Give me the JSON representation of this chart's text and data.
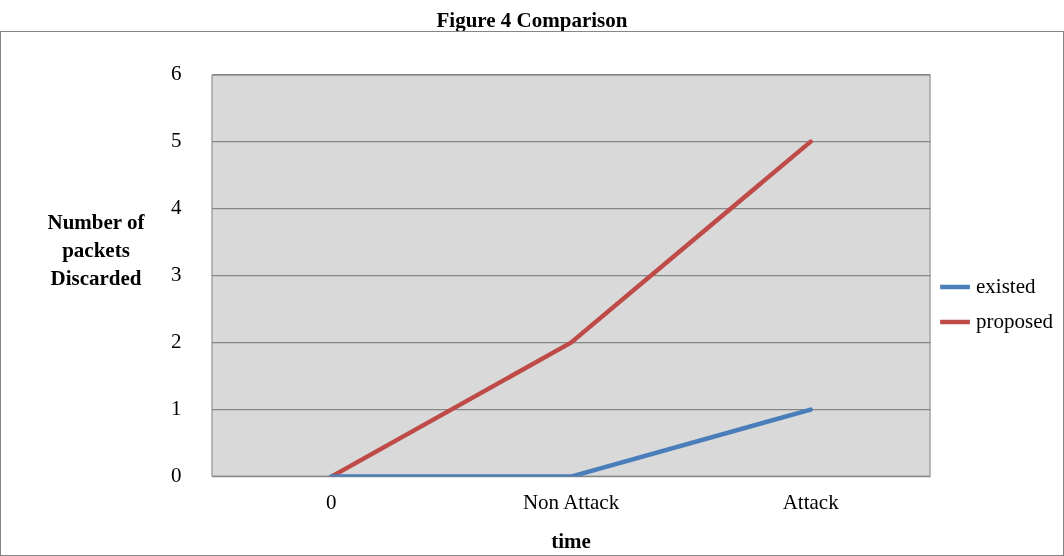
{
  "chart_data": {
    "type": "line",
    "title": "Figure 4 Comparison",
    "xlabel": "time",
    "ylabel": "Number of packets Discarded",
    "categories": [
      "0",
      "Non Attack",
      "Attack"
    ],
    "series": [
      {
        "name": "existed",
        "color": "#4a7ebb",
        "values": [
          0,
          0,
          1
        ]
      },
      {
        "name": "proposed",
        "color": "#be4b48",
        "values": [
          0,
          2,
          5
        ]
      }
    ],
    "ylim": [
      0,
      6
    ],
    "yticks": [
      0,
      1,
      2,
      3,
      4,
      5,
      6
    ],
    "grid": "y",
    "legend": "right",
    "marker": "none",
    "line_style": "solid"
  }
}
